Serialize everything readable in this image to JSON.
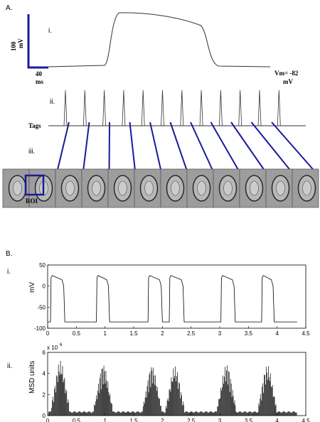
{
  "panel_a": {
    "label": "A.",
    "sub_i": "i.",
    "sub_ii": "ii.",
    "sub_iii": "iii.",
    "scale_v": "100",
    "scale_v_unit": "mV",
    "scale_t": "40",
    "scale_t_unit": "ms",
    "vm_label": "Vm= -82",
    "vm_unit": "mV",
    "tags_label": "Tags",
    "roi_label": "ROI",
    "frame_count": 12,
    "accent_color": "#1a1a9c"
  },
  "panel_b": {
    "label": "B.",
    "sub_i": "i.",
    "sub_ii": "ii."
  },
  "chart_data": [
    {
      "type": "line",
      "panel": "A.i",
      "ylabel": "mV",
      "y_resting": -82,
      "y_plateau": 20,
      "upstroke_frac": 0.28,
      "repol_frac": 0.72
    },
    {
      "type": "bar",
      "panel": "A.ii",
      "ylabel": "Tags",
      "tag_count": 12
    },
    {
      "type": "line",
      "panel": "B.i",
      "ylabel": "mV",
      "xlim": [
        0,
        4.5
      ],
      "ylim": [
        -100,
        50
      ],
      "xticks": [
        "0",
        "0.5",
        "1",
        "1.5",
        "2",
        "2.5",
        "3",
        "3.5",
        "4",
        "4.5"
      ],
      "yticks": [
        "50",
        "0",
        "-50",
        "-100"
      ],
      "ytick_values": [
        50,
        0,
        -50,
        -100
      ],
      "resting": -85,
      "peak": 25,
      "ap_starts": [
        0.05,
        0.85,
        1.75,
        2.12,
        3.02,
        3.73
      ],
      "ap_ends": [
        0.3,
        1.08,
        2.0,
        2.38,
        3.27,
        3.95
      ],
      "x_end": 4.35
    },
    {
      "type": "bar",
      "panel": "B.ii",
      "ylabel": "MSD units",
      "exponent_label": "x 10",
      "exponent_value": "6",
      "xlim": [
        0,
        4.5
      ],
      "ylim": [
        0,
        6
      ],
      "xticks": [
        "0",
        "0.5",
        "1",
        "1.5",
        "2",
        "2.5",
        "3",
        "3.5",
        "4",
        "4.5"
      ],
      "yticks": [
        "0",
        "2",
        "4",
        "6"
      ],
      "ytick_values": [
        0,
        2,
        4,
        6
      ],
      "bursts": [
        {
          "center": 0.22,
          "peak": 5.2
        },
        {
          "center": 0.97,
          "peak": 4.9
        },
        {
          "center": 1.82,
          "peak": 4.8
        },
        {
          "center": 2.22,
          "peak": 4.7
        },
        {
          "center": 3.12,
          "peak": 4.9
        },
        {
          "center": 3.83,
          "peak": 4.8
        }
      ]
    }
  ]
}
